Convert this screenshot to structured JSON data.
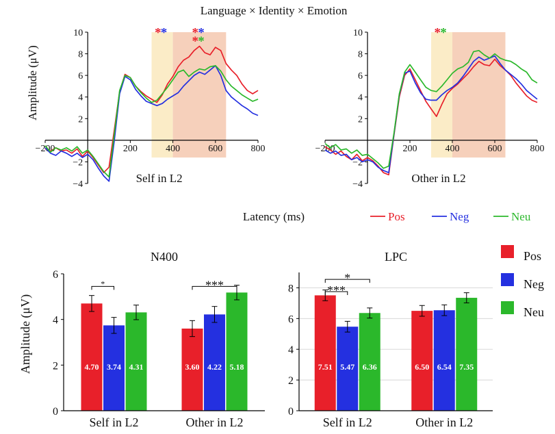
{
  "figure": {
    "title": "Language × Identity × Emotion",
    "erp_xlabel": "Latency (ms)",
    "bar_ylabel": "Amplitude (μV)",
    "erp_ylabel": "Amplitude (μV)"
  },
  "legend": [
    {
      "label": "Pos",
      "color": "#e8202a"
    },
    {
      "label": "Neg",
      "color": "#2430e0"
    },
    {
      "label": "Neu",
      "color": "#2bb82b"
    }
  ],
  "chart_data": [
    {
      "type": "line",
      "id": "erp_self",
      "title": "Self in L2",
      "xlabel": "Latency (ms)",
      "ylabel": "Amplitude (μV)",
      "xlim": [
        -200,
        800
      ],
      "ylim": [
        -4,
        10
      ],
      "xticks": [
        -200,
        200,
        400,
        600,
        800
      ],
      "yticks": [
        -4,
        -2,
        2,
        4,
        6,
        8,
        10
      ],
      "windows": [
        {
          "label": "N400",
          "x0": 300,
          "x1": 400,
          "color": "#fbecc7"
        },
        {
          "label": "LPC",
          "x0": 400,
          "x1": 650,
          "color": "#f6d0bb"
        }
      ],
      "window_ymin": -1.6,
      "annotations": [
        {
          "text": "*",
          "x": 330,
          "y": 10.1,
          "color": "#e8202a"
        },
        {
          "text": "*",
          "x": 358,
          "y": 10.1,
          "color": "#2430e0"
        },
        {
          "text": "*",
          "x": 505,
          "y": 10.1,
          "color": "#e8202a"
        },
        {
          "text": "*",
          "x": 533,
          "y": 10.1,
          "color": "#2430e0"
        },
        {
          "text": "*",
          "x": 505,
          "y": 9.3,
          "color": "#e8202a"
        },
        {
          "text": "*",
          "x": 533,
          "y": 9.3,
          "color": "#2bb82b"
        }
      ],
      "x": [
        -200,
        -175,
        -150,
        -125,
        -100,
        -75,
        -50,
        -25,
        0,
        25,
        50,
        75,
        100,
        125,
        150,
        175,
        200,
        225,
        250,
        275,
        300,
        325,
        350,
        375,
        400,
        425,
        450,
        475,
        500,
        525,
        550,
        575,
        600,
        625,
        650,
        675,
        700,
        725,
        750,
        775,
        800
      ],
      "series": [
        {
          "name": "Pos",
          "color": "#e8202a",
          "values": [
            -0.8,
            -1.0,
            -0.7,
            -1.0,
            -0.9,
            -1.2,
            -0.8,
            -1.5,
            -1.0,
            -1.6,
            -2.3,
            -3.0,
            -2.5,
            1.0,
            4.5,
            6.1,
            5.8,
            5.0,
            4.5,
            4.1,
            3.8,
            3.5,
            4.2,
            5.2,
            5.9,
            6.8,
            7.4,
            7.7,
            8.3,
            8.7,
            8.1,
            7.9,
            8.6,
            8.3,
            7.1,
            6.5,
            6.0,
            5.2,
            4.6,
            4.3,
            4.6
          ]
        },
        {
          "name": "Neg",
          "color": "#2430e0",
          "values": [
            -0.7,
            -1.2,
            -1.4,
            -1.0,
            -1.2,
            -1.5,
            -1.2,
            -1.6,
            -1.3,
            -1.8,
            -2.6,
            -3.3,
            -3.8,
            0.0,
            4.3,
            5.9,
            5.6,
            4.7,
            4.1,
            3.6,
            3.4,
            3.2,
            3.4,
            3.8,
            4.1,
            4.4,
            5.0,
            5.5,
            6.0,
            6.3,
            6.1,
            6.5,
            6.9,
            6.0,
            4.6,
            4.0,
            3.6,
            3.2,
            2.9,
            2.5,
            2.3
          ]
        },
        {
          "name": "Neu",
          "color": "#2bb82b",
          "values": [
            -0.5,
            -1.1,
            -0.7,
            -0.9,
            -0.7,
            -1.0,
            -0.6,
            -1.2,
            -0.9,
            -1.5,
            -2.2,
            -2.9,
            -3.4,
            0.6,
            4.6,
            6.0,
            5.8,
            5.0,
            4.4,
            3.9,
            3.5,
            3.7,
            4.3,
            4.9,
            5.6,
            6.3,
            6.5,
            5.9,
            6.3,
            6.6,
            6.5,
            6.8,
            6.9,
            6.4,
            5.6,
            5.0,
            4.6,
            4.2,
            3.9,
            3.6,
            3.8
          ]
        }
      ]
    },
    {
      "type": "line",
      "id": "erp_other",
      "title": "Other in L2",
      "xlabel": "Latency (ms)",
      "ylabel": "Amplitude (μV)",
      "xlim": [
        -200,
        800
      ],
      "ylim": [
        -4,
        10
      ],
      "xticks": [
        -200,
        200,
        400,
        600,
        800
      ],
      "yticks": [
        -4,
        -2,
        2,
        4,
        6,
        8,
        10
      ],
      "windows": [
        {
          "label": "N400",
          "x0": 300,
          "x1": 400,
          "color": "#fbecc7"
        },
        {
          "label": "LPC",
          "x0": 400,
          "x1": 650,
          "color": "#f6d0bb"
        }
      ],
      "window_ymin": -1.6,
      "annotations": [
        {
          "text": "*",
          "x": 330,
          "y": 10.1,
          "color": "#e8202a"
        },
        {
          "text": "*",
          "x": 358,
          "y": 10.1,
          "color": "#2bb82b"
        }
      ],
      "x": [
        -200,
        -175,
        -150,
        -125,
        -100,
        -75,
        -50,
        -25,
        0,
        25,
        50,
        75,
        100,
        125,
        150,
        175,
        200,
        225,
        250,
        275,
        300,
        325,
        350,
        375,
        400,
        425,
        450,
        475,
        500,
        525,
        550,
        575,
        600,
        625,
        650,
        675,
        700,
        725,
        750,
        775,
        800
      ],
      "series": [
        {
          "name": "Pos",
          "color": "#e8202a",
          "values": [
            -0.6,
            -0.9,
            -1.3,
            -1.0,
            -1.5,
            -1.8,
            -1.3,
            -1.9,
            -1.6,
            -1.9,
            -2.4,
            -3.0,
            -3.2,
            0.5,
            4.0,
            6.0,
            6.6,
            5.6,
            4.6,
            3.6,
            2.9,
            2.2,
            3.3,
            4.3,
            4.8,
            5.2,
            5.7,
            6.2,
            6.8,
            7.3,
            7.0,
            6.9,
            7.5,
            6.9,
            6.5,
            6.0,
            5.3,
            4.7,
            4.1,
            3.7,
            3.5
          ]
        },
        {
          "name": "Neg",
          "color": "#2430e0",
          "values": [
            -0.9,
            -1.2,
            -1.0,
            -1.4,
            -1.3,
            -1.8,
            -1.6,
            -2.0,
            -1.8,
            -2.0,
            -2.5,
            -2.8,
            -3.0,
            0.6,
            4.2,
            6.2,
            6.4,
            5.3,
            4.4,
            3.8,
            3.7,
            3.7,
            4.2,
            4.6,
            4.9,
            5.3,
            5.9,
            6.6,
            7.3,
            7.7,
            7.4,
            7.6,
            7.8,
            7.1,
            6.5,
            6.1,
            5.7,
            5.2,
            4.6,
            4.2,
            3.8
          ]
        },
        {
          "name": "Neu",
          "color": "#2bb82b",
          "values": [
            -0.3,
            -0.7,
            -0.4,
            -0.9,
            -0.8,
            -1.2,
            -0.9,
            -1.4,
            -1.3,
            -1.7,
            -2.1,
            -2.6,
            -2.4,
            0.7,
            4.3,
            6.3,
            7.0,
            6.3,
            5.6,
            4.9,
            4.6,
            4.5,
            5.0,
            5.6,
            6.2,
            6.6,
            6.8,
            7.2,
            8.2,
            8.3,
            7.9,
            7.6,
            8.0,
            7.6,
            7.4,
            7.3,
            7.0,
            6.6,
            6.3,
            5.6,
            5.3
          ]
        }
      ]
    },
    {
      "type": "bar",
      "id": "bar_n400",
      "title": "N400",
      "ylabel": "Amplitude (μV)",
      "ylim": [
        0,
        6
      ],
      "yticks": [
        0,
        2,
        4,
        6
      ],
      "grid": false,
      "categories": [
        "Self in L2",
        "Other in L2"
      ],
      "series": [
        {
          "name": "Pos",
          "color": "#e8202a",
          "values": [
            4.7,
            3.6
          ],
          "errors": [
            0.35,
            0.35
          ],
          "labels": [
            "4.70",
            "3.60"
          ]
        },
        {
          "name": "Neg",
          "color": "#2430e0",
          "values": [
            3.74,
            4.22
          ],
          "errors": [
            0.35,
            0.35
          ],
          "labels": [
            "3.74",
            "4.22"
          ]
        },
        {
          "name": "Neu",
          "color": "#2bb82b",
          "values": [
            4.31,
            5.18
          ],
          "errors": [
            0.32,
            0.32
          ],
          "labels": [
            "4.31",
            "5.18"
          ]
        }
      ],
      "significance": [
        {
          "text": "*",
          "category": 0,
          "from": 0,
          "to": 1,
          "y": 5.45
        },
        {
          "text": "***",
          "category": 1,
          "from": 0,
          "to": 2,
          "y": 5.45
        }
      ]
    },
    {
      "type": "bar",
      "id": "bar_lpc",
      "title": "LPC",
      "ylabel": "",
      "ylim": [
        0,
        9
      ],
      "yticks": [
        0,
        2,
        4,
        6,
        8
      ],
      "grid": true,
      "categories": [
        "Self in L2",
        "Other in L2"
      ],
      "series": [
        {
          "name": "Pos",
          "color": "#e8202a",
          "values": [
            7.51,
            6.5
          ],
          "errors": [
            0.35,
            0.35
          ],
          "labels": [
            "7.51",
            "6.50"
          ]
        },
        {
          "name": "Neg",
          "color": "#2430e0",
          "values": [
            5.47,
            6.54
          ],
          "errors": [
            0.35,
            0.35
          ],
          "labels": [
            "5.47",
            "6.54"
          ]
        },
        {
          "name": "Neu",
          "color": "#2bb82b",
          "values": [
            6.36,
            7.35
          ],
          "errors": [
            0.33,
            0.33
          ],
          "labels": [
            "6.36",
            "7.35"
          ]
        }
      ],
      "significance": [
        {
          "text": "*",
          "category": 0,
          "from": 0,
          "to": 2,
          "y": 8.55
        },
        {
          "text": "***",
          "category": 0,
          "from": 0,
          "to": 1,
          "y": 7.75
        }
      ]
    }
  ]
}
